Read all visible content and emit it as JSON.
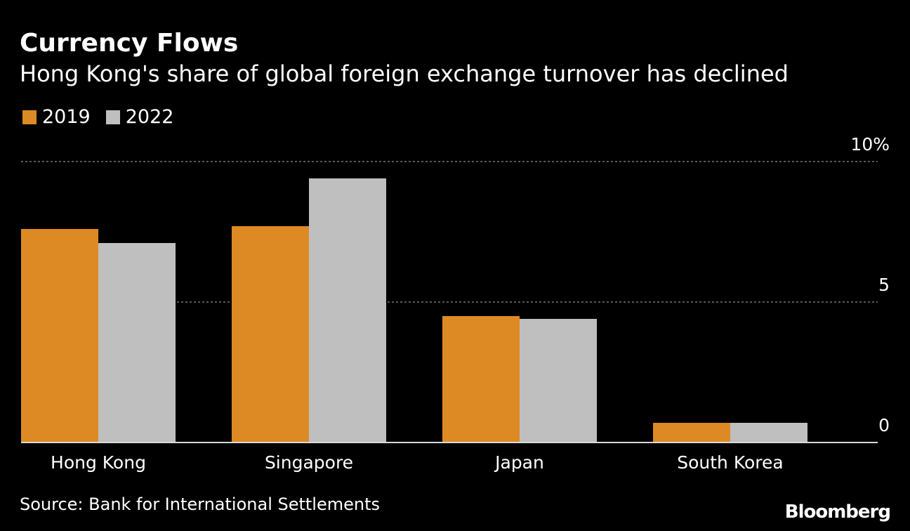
{
  "header": {
    "title": "Currency Flows",
    "subtitle": "Hong Kong's share of global foreign exchange turnover has declined"
  },
  "legend": [
    {
      "label": "2019",
      "color": "#dd8a25"
    },
    {
      "label": "2022",
      "color": "#bfbfbf"
    }
  ],
  "footer": {
    "source": "Source: Bank for International Settlements",
    "brand": "Bloomberg"
  },
  "chart_data": {
    "type": "bar",
    "categories": [
      "Hong Kong",
      "Singapore",
      "Japan",
      "South Korea"
    ],
    "series": [
      {
        "name": "2019",
        "values": [
          7.6,
          7.7,
          4.5,
          0.7
        ],
        "color": "#dd8a25"
      },
      {
        "name": "2022",
        "values": [
          7.1,
          9.4,
          4.4,
          0.7
        ],
        "color": "#bfbfbf"
      }
    ],
    "yticks": [
      {
        "value": 10,
        "label": "10%"
      },
      {
        "value": 5,
        "label": "5"
      },
      {
        "value": 0,
        "label": "0"
      }
    ],
    "ylim": [
      0,
      10
    ],
    "grid": true,
    "legend_position": "top-left"
  }
}
